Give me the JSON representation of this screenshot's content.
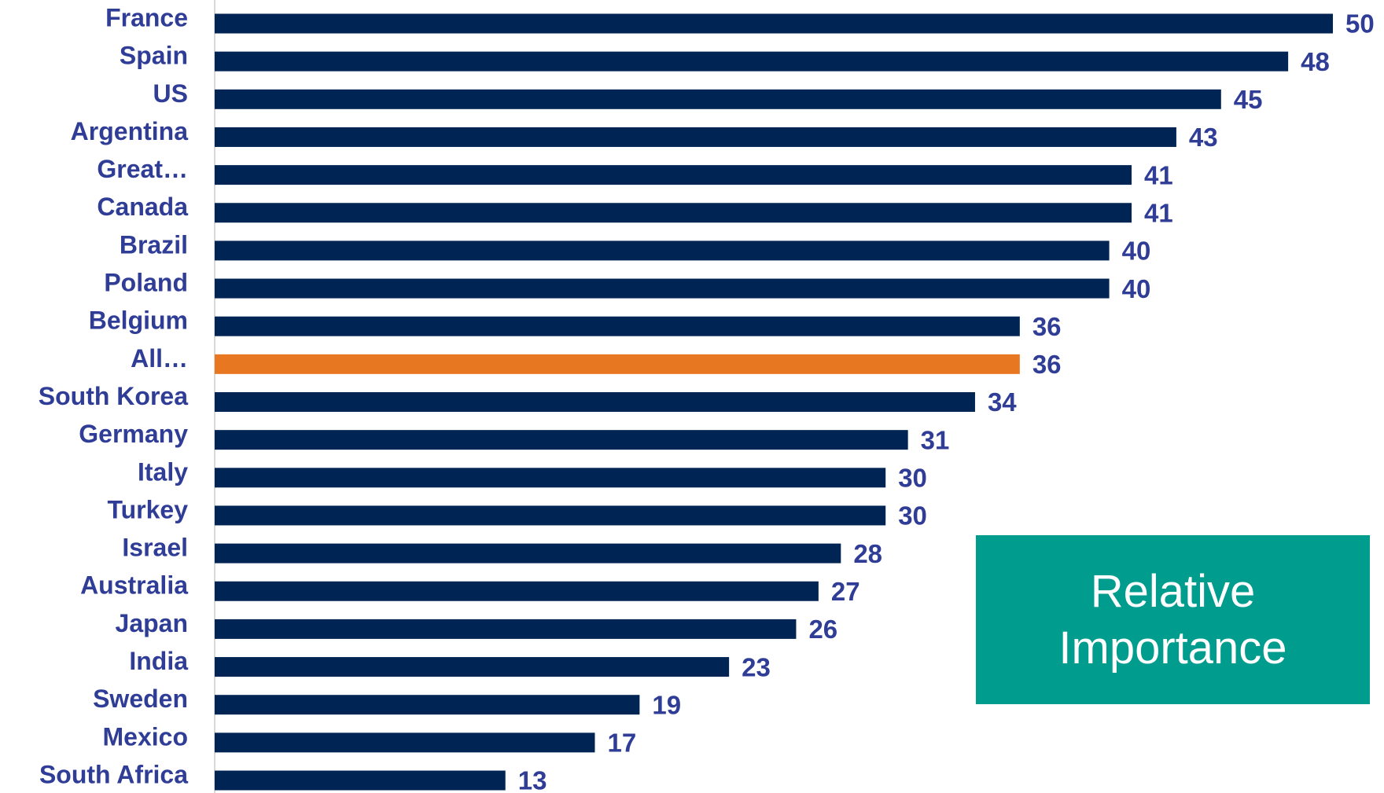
{
  "chart_data": {
    "type": "bar",
    "orientation": "horizontal",
    "categories": [
      "France",
      "Spain",
      "US",
      "Argentina",
      "Great…",
      "Canada",
      "Brazil",
      "Poland",
      "Belgium",
      "All…",
      "South Korea",
      "Germany",
      "Italy",
      "Turkey",
      "Israel",
      "Australia",
      "Japan",
      "India",
      "Sweden",
      "Mexico",
      "South Africa"
    ],
    "values": [
      50,
      48,
      45,
      43,
      41,
      41,
      40,
      40,
      36,
      36,
      34,
      31,
      30,
      30,
      28,
      27,
      26,
      23,
      19,
      17,
      13
    ],
    "color": "#002554",
    "highlight": {
      "category": "All…",
      "color": "#e87722"
    },
    "xlim": [
      0,
      50
    ],
    "annotation": {
      "text": "Relative Importance",
      "color": "#009c8e"
    }
  }
}
